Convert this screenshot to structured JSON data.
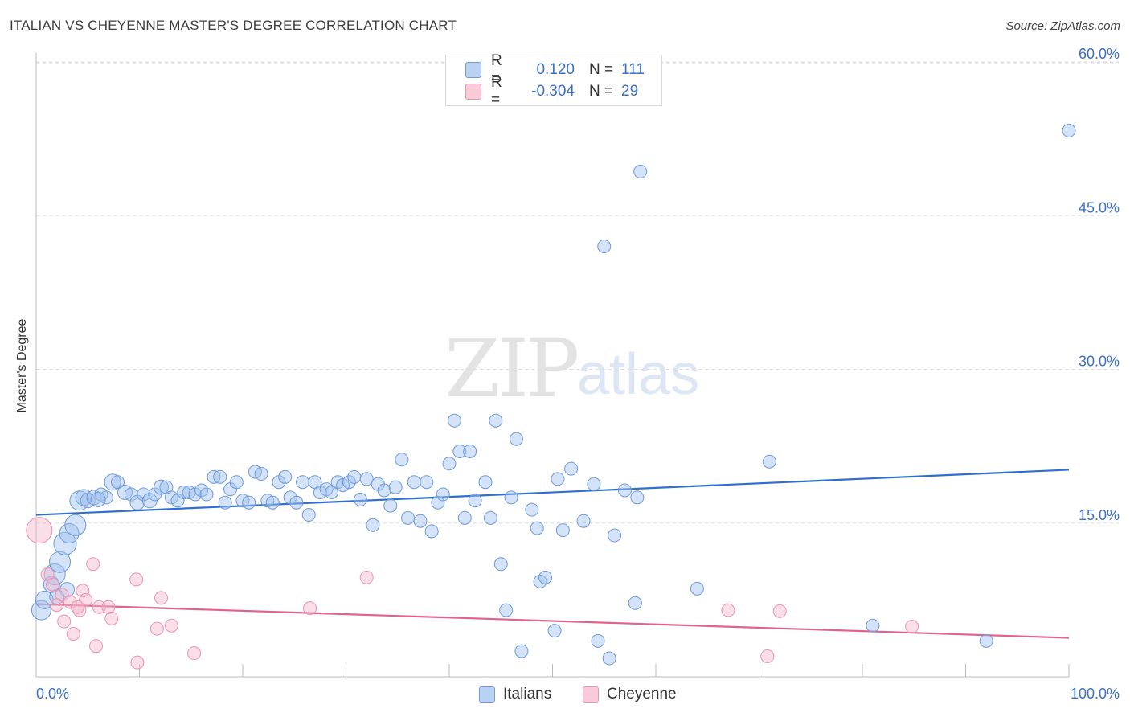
{
  "title": "ITALIAN VS CHEYENNE MASTER'S DEGREE CORRELATION CHART",
  "source": "Source: ZipAtlas.com",
  "watermark": {
    "zip": "ZIP",
    "atlas": "atlas"
  },
  "legend": {
    "rows": [
      {
        "r_label": "R =",
        "r_value": "0.120",
        "n_label": "N =",
        "n_value": "111"
      },
      {
        "r_label": "R =",
        "r_value": "-0.304",
        "n_label": "N =",
        "n_value": "29"
      }
    ]
  },
  "bottom_legend": {
    "italians": "Italians",
    "cheyenne": "Cheyenne"
  },
  "chart_data": {
    "type": "scatter",
    "title": "ITALIAN VS CHEYENNE MASTER'S DEGREE CORRELATION CHART",
    "xlabel": "",
    "ylabel": "Master's Degree",
    "xlim": [
      0,
      100
    ],
    "ylim": [
      0,
      62
    ],
    "x_tick_labels": [
      "0.0%",
      "100.0%"
    ],
    "y_ticks": [
      15,
      30,
      45,
      60
    ],
    "y_tick_labels": [
      "15.0%",
      "30.0%",
      "45.0%",
      "60.0%"
    ],
    "grid": "horizontal dashed",
    "legend_position": "top-center",
    "colors": {
      "italians": "#5b8fd8",
      "italians_line": "#2f6fcf",
      "cheyenne": "#ef8fb0",
      "cheyenne_line": "#e0628f",
      "tick_text": "#3b6fc9"
    },
    "series": [
      {
        "name": "Italians",
        "trend": {
          "x": [
            0,
            100
          ],
          "y": [
            15.8,
            20.2
          ]
        },
        "points": [
          [
            0.5,
            6.5,
            12
          ],
          [
            0.8,
            7.5,
            11
          ],
          [
            1.5,
            9,
            10
          ],
          [
            1.8,
            10,
            13
          ],
          [
            2.3,
            11.2,
            13
          ],
          [
            2.8,
            13,
            14
          ],
          [
            3.2,
            14,
            12
          ],
          [
            3.8,
            14.8,
            13
          ],
          [
            4.2,
            17.2,
            12
          ],
          [
            4.6,
            17.5,
            10
          ],
          [
            5,
            17.2,
            9
          ],
          [
            5.6,
            17.5,
            9
          ],
          [
            6.3,
            17.8,
            8
          ],
          [
            6.8,
            17.5,
            8
          ],
          [
            7.4,
            19,
            10
          ],
          [
            7.9,
            19,
            8
          ],
          [
            8.6,
            18,
            9
          ],
          [
            9.2,
            17.8,
            8
          ],
          [
            9.8,
            17,
            9
          ],
          [
            10.4,
            17.8,
            8
          ],
          [
            11,
            17.2,
            9
          ],
          [
            11.5,
            17.8,
            8
          ],
          [
            12.1,
            18.5,
            9
          ],
          [
            12.6,
            18.5,
            8
          ],
          [
            13.1,
            17.5,
            8
          ],
          [
            13.7,
            17.2,
            8
          ],
          [
            14.3,
            18,
            8
          ],
          [
            14.8,
            18,
            8
          ],
          [
            15.4,
            17.8,
            8
          ],
          [
            16,
            18.2,
            8
          ],
          [
            16.5,
            17.8,
            8
          ],
          [
            17.2,
            19.5,
            8
          ],
          [
            17.8,
            19.5,
            8
          ],
          [
            18.3,
            17,
            8
          ],
          [
            18.8,
            18.3,
            8
          ],
          [
            19.4,
            19,
            8
          ],
          [
            20,
            17.2,
            8
          ],
          [
            20.6,
            17,
            8
          ],
          [
            21.2,
            20,
            8
          ],
          [
            21.8,
            19.8,
            8
          ],
          [
            22.4,
            17.2,
            8
          ],
          [
            22.9,
            17,
            8
          ],
          [
            23.5,
            19,
            8
          ],
          [
            24.1,
            19.5,
            8
          ],
          [
            24.6,
            17.5,
            8
          ],
          [
            25.2,
            17,
            8
          ],
          [
            25.8,
            19,
            8
          ],
          [
            26.4,
            15.8,
            8
          ],
          [
            27,
            19,
            8
          ],
          [
            27.5,
            18,
            8
          ],
          [
            28.1,
            18.3,
            8
          ],
          [
            28.6,
            18,
            8
          ],
          [
            29.2,
            19,
            8
          ],
          [
            29.7,
            18.7,
            8
          ],
          [
            30.3,
            19,
            8
          ],
          [
            30.8,
            19.5,
            8
          ],
          [
            31.4,
            17.3,
            8
          ],
          [
            32,
            19.3,
            8
          ],
          [
            32.6,
            14.8,
            8
          ],
          [
            33.1,
            18.8,
            8
          ],
          [
            33.7,
            18.2,
            8
          ],
          [
            34.3,
            16.7,
            8
          ],
          [
            34.8,
            18.5,
            8
          ],
          [
            35.4,
            21.2,
            8
          ],
          [
            36,
            15.5,
            8
          ],
          [
            36.6,
            19,
            8
          ],
          [
            37.2,
            15.2,
            8
          ],
          [
            37.8,
            19,
            8
          ],
          [
            38.3,
            14.2,
            8
          ],
          [
            38.9,
            17,
            8
          ],
          [
            39.4,
            17.8,
            8
          ],
          [
            40,
            20.8,
            8
          ],
          [
            40.5,
            25,
            8
          ],
          [
            41,
            22,
            8
          ],
          [
            41.5,
            15.5,
            8
          ],
          [
            42,
            22,
            8
          ],
          [
            42.5,
            17.2,
            8
          ],
          [
            43.5,
            19,
            8
          ],
          [
            44,
            15.5,
            8
          ],
          [
            44.5,
            25,
            8
          ],
          [
            45,
            11,
            8
          ],
          [
            45.5,
            6.5,
            8
          ],
          [
            46,
            17.5,
            8
          ],
          [
            46.5,
            23.2,
            8
          ],
          [
            47,
            2.5,
            8
          ],
          [
            48,
            16.3,
            8
          ],
          [
            48.5,
            14.5,
            8
          ],
          [
            48.8,
            9.3,
            8
          ],
          [
            49.3,
            9.7,
            8
          ],
          [
            50.2,
            4.5,
            8
          ],
          [
            50.5,
            19.3,
            8
          ],
          [
            51,
            14.3,
            8
          ],
          [
            51.8,
            20.3,
            8
          ],
          [
            53,
            15.2,
            8
          ],
          [
            54,
            18.8,
            8
          ],
          [
            54.4,
            3.5,
            8
          ],
          [
            55,
            42,
            8
          ],
          [
            55.5,
            1.8,
            8
          ],
          [
            56,
            13.8,
            8
          ],
          [
            57,
            18.2,
            8
          ],
          [
            58,
            7.2,
            8
          ],
          [
            58.2,
            17.5,
            8
          ],
          [
            58.5,
            49.3,
            8
          ],
          [
            64,
            8.6,
            8
          ],
          [
            71,
            21,
            8
          ],
          [
            81,
            5,
            8
          ],
          [
            92,
            3.5,
            8
          ],
          [
            100,
            53.3,
            8
          ],
          [
            3,
            8.5,
            9
          ],
          [
            2,
            7.8,
            9
          ],
          [
            6,
            17.3,
            9
          ]
        ]
      },
      {
        "name": "Cheyenne",
        "trend": {
          "x": [
            0,
            100
          ],
          "y": [
            7.1,
            3.8
          ]
        },
        "points": [
          [
            0.3,
            14.3,
            16
          ],
          [
            1.1,
            10,
            8
          ],
          [
            1.6,
            9,
            8
          ],
          [
            2,
            7,
            8
          ],
          [
            2.5,
            8,
            8
          ],
          [
            2.7,
            5.4,
            8
          ],
          [
            3.3,
            7.3,
            8
          ],
          [
            3.6,
            4.2,
            8
          ],
          [
            4.2,
            6.5,
            8
          ],
          [
            4.5,
            8.4,
            8
          ],
          [
            4.8,
            7.5,
            8
          ],
          [
            5.5,
            11,
            8
          ],
          [
            5.8,
            3,
            8
          ],
          [
            6.1,
            6.8,
            8
          ],
          [
            7,
            6.8,
            8
          ],
          [
            7.3,
            5.7,
            8
          ],
          [
            9.7,
            9.5,
            8
          ],
          [
            9.8,
            1.4,
            8
          ],
          [
            11.7,
            4.7,
            8
          ],
          [
            12.1,
            7.7,
            8
          ],
          [
            13.1,
            5,
            8
          ],
          [
            15.3,
            2.3,
            8
          ],
          [
            26.5,
            6.7,
            8
          ],
          [
            32,
            9.7,
            8
          ],
          [
            67,
            6.5,
            8
          ],
          [
            70.8,
            2.0,
            8
          ],
          [
            72,
            6.4,
            8
          ],
          [
            84.8,
            4.9,
            8
          ],
          [
            4.0,
            6.8,
            8
          ]
        ]
      }
    ]
  }
}
